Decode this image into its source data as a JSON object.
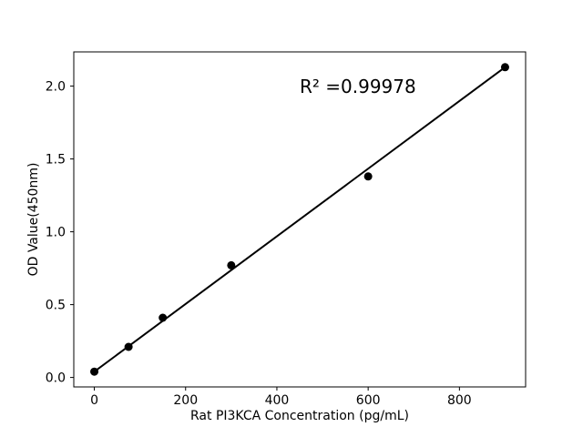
{
  "figure": {
    "background_color": "#ffffff",
    "foreground_color": "#000000"
  },
  "chart_data": {
    "type": "scatter",
    "title": "",
    "xlabel": "Rat PI3KCA Concentration (pg/mL)",
    "ylabel": "OD Value(450nm)",
    "annotation": "R² =0.99978",
    "x": [
      0,
      75,
      150,
      300,
      600,
      900
    ],
    "y": [
      0.04,
      0.21,
      0.41,
      0.77,
      1.38,
      2.13
    ],
    "fit_line": {
      "x1": 0,
      "y1": 0.04,
      "x2": 900,
      "y2": 2.13
    },
    "xticks": [
      "0",
      "200",
      "400",
      "600",
      "800"
    ],
    "yticks": [
      "0.0",
      "0.5",
      "1.0",
      "1.5",
      "2.0"
    ],
    "xlim": [
      -45,
      945
    ],
    "ylim": [
      -0.065,
      2.235
    ],
    "grid": false,
    "legend_position": "none",
    "marker_color": "#000000",
    "line_color": "#000000",
    "axis_color": "#000000"
  }
}
